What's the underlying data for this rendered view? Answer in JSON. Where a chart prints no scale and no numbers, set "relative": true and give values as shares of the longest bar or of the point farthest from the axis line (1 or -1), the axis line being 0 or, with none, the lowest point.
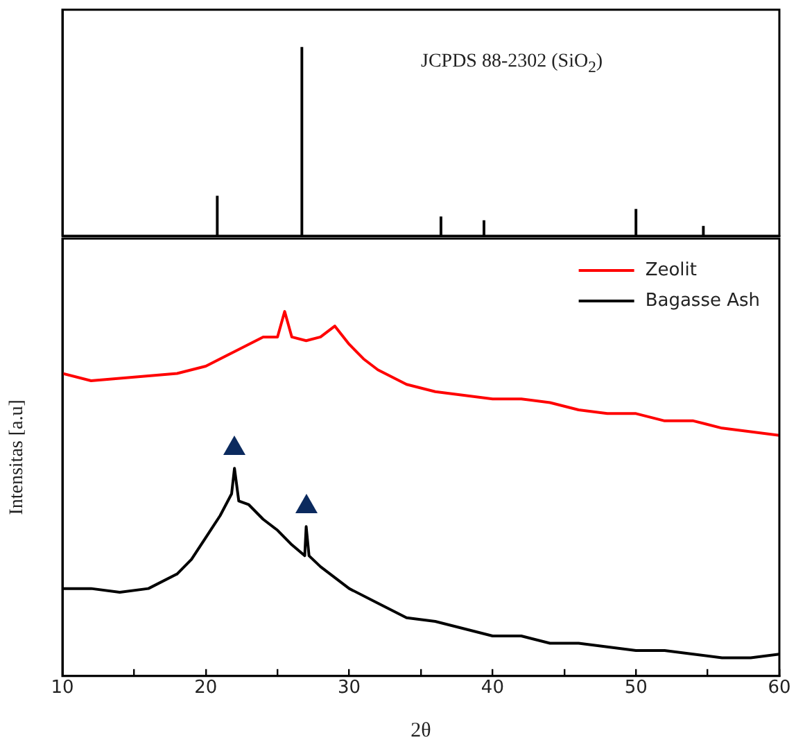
{
  "chart_data": [
    {
      "type": "bar",
      "relative": true,
      "color": "#000000",
      "x": [
        20.8,
        26.7,
        36.4,
        39.4,
        50.0,
        54.7
      ],
      "values": [
        0.21,
        1,
        0.1,
        0.08,
        0.14,
        0.05
      ],
      "xlim": [
        10,
        60
      ],
      "tick_labels": false,
      "annotations": [
        "JCPDS 88-2302 (SiO$_{2}$)"
      ]
    },
    {
      "type": "line",
      "relative": true,
      "xlim": [
        10,
        60
      ],
      "xticks": [
        10,
        {
          "value": 15,
          "label": null
        },
        20,
        {
          "value": 25,
          "label": null
        },
        30,
        {
          "value": 35,
          "label": null
        },
        40,
        {
          "value": 45,
          "label": null
        },
        50,
        {
          "value": 55,
          "label": null
        },
        60
      ],
      "xlabel": "2θ",
      "ylabel": "Intensitas [a.u]",
      "legend": "top right",
      "marker": "none",
      "series": [
        {
          "name": "Zeolit",
          "color": "#ff0000",
          "x": [
            10,
            12,
            15,
            18,
            20,
            22,
            24,
            25,
            25.5,
            26,
            27,
            28,
            29,
            30,
            31,
            32,
            34,
            36,
            38,
            40,
            42,
            44,
            46,
            48,
            50,
            52,
            54,
            56,
            58,
            60
          ],
          "values": [
            0.83,
            0.81,
            0.82,
            0.83,
            0.85,
            0.89,
            0.93,
            0.93,
            1.0,
            0.93,
            0.92,
            0.93,
            0.96,
            0.91,
            0.87,
            0.84,
            0.8,
            0.78,
            0.77,
            0.76,
            0.76,
            0.75,
            0.73,
            0.72,
            0.72,
            0.7,
            0.7,
            0.68,
            0.67,
            0.66
          ]
        },
        {
          "name": "Bagasse Ash",
          "color": "#000000",
          "x": [
            10,
            12,
            14,
            16,
            18,
            19,
            20,
            21,
            21.8,
            22,
            22.3,
            23,
            24,
            25,
            26,
            26.9,
            27,
            27.2,
            28,
            30,
            32,
            34,
            36,
            38,
            40,
            42,
            44,
            46,
            48,
            50,
            52,
            54,
            56,
            58,
            60
          ],
          "values": [
            0.24,
            0.24,
            0.23,
            0.24,
            0.28,
            0.32,
            0.38,
            0.44,
            0.5,
            0.57,
            0.48,
            0.47,
            0.43,
            0.4,
            0.36,
            0.33,
            0.41,
            0.33,
            0.3,
            0.24,
            0.2,
            0.16,
            0.15,
            0.13,
            0.11,
            0.11,
            0.09,
            0.09,
            0.08,
            0.07,
            0.07,
            0.06,
            0.05,
            0.05,
            0.06
          ]
        }
      ]
    }
  ]
}
